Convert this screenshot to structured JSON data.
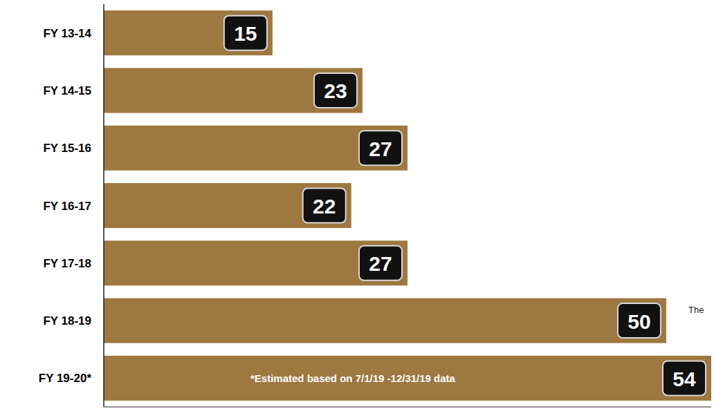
{
  "chart_data": {
    "type": "bar",
    "orientation": "horizontal",
    "categories": [
      "FY 13-14",
      "FY 14-15",
      "FY 15-16",
      "FY 16-17",
      "FY 17-18",
      "FY 18-19",
      "FY 19-20*"
    ],
    "values": [
      15,
      23,
      27,
      22,
      27,
      50,
      54
    ],
    "color": "#9e7841",
    "xlim": [
      0,
      54
    ],
    "data_labels": true,
    "tick_labels": "y",
    "grid": false,
    "annotations": [
      {
        "text": "*Estimated based on 7/1/19 -12/31/19 data",
        "category": "FY 19-20*"
      },
      {
        "text": "The"
      }
    ]
  }
}
